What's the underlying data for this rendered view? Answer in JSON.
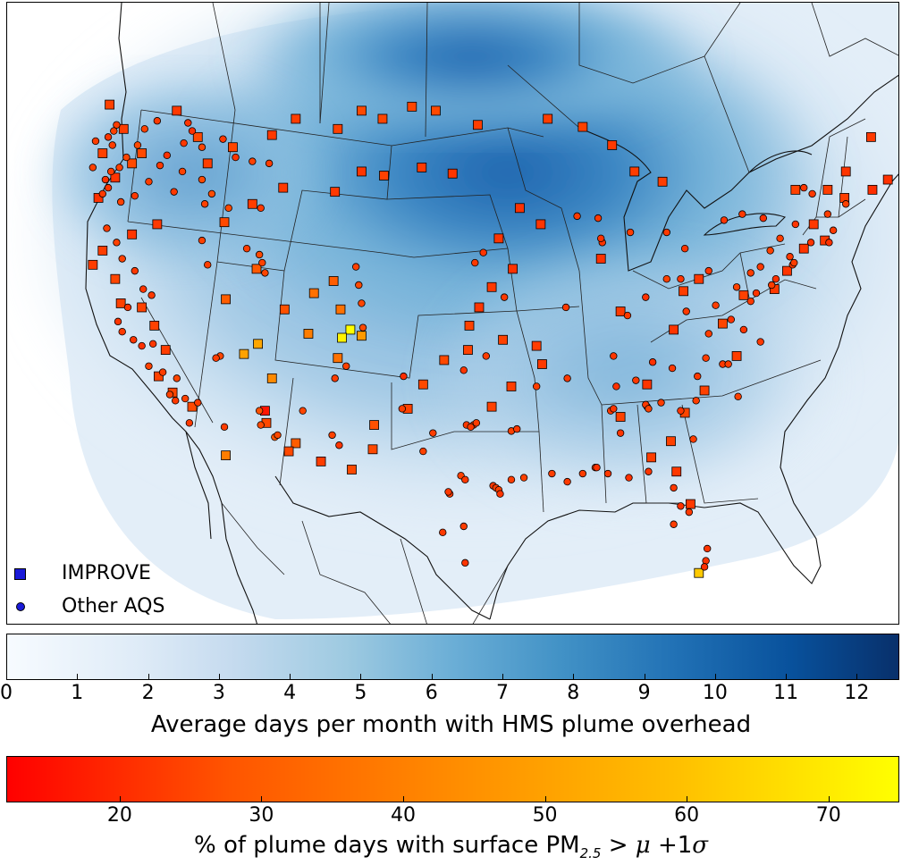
{
  "legend": {
    "improve_label": "IMPROVE",
    "aqs_label": "Other AQS",
    "improve_symbol": "square-marker",
    "aqs_symbol": "circle-marker"
  },
  "colorbar_plume": {
    "label": "Average days per month with HMS plume overhead",
    "ticks": [
      "0",
      "1",
      "2",
      "3",
      "4",
      "5",
      "6",
      "7",
      "8",
      "9",
      "10",
      "11",
      "12"
    ],
    "range": [
      0,
      12.6
    ],
    "colors": [
      "#f7fbff",
      "#deebf7",
      "#c6dbef",
      "#9ecae1",
      "#6baed6",
      "#4292c6",
      "#2171b5",
      "#08519c",
      "#08306b"
    ]
  },
  "colorbar_pm": {
    "label_prefix": "% of plume days with surface PM",
    "label_sub": "2.5",
    "label_suffix": " > ",
    "label_mu": "μ",
    "label_rest": " +1",
    "label_sigma": "σ",
    "ticks": [
      "20",
      "30",
      "40",
      "50",
      "60",
      "70"
    ],
    "range": [
      12,
      75
    ],
    "colors": [
      "#ff0000",
      "#ff5500",
      "#ff8c00",
      "#ffbf00",
      "#ffff00"
    ]
  },
  "improve_sites": [
    [
      -122.8,
      48.6,
      28
    ],
    [
      -121.8,
      47.4,
      27
    ],
    [
      -123.3,
      46.2,
      28
    ],
    [
      -122.4,
      45.0,
      25
    ],
    [
      -123.6,
      44.0,
      24
    ],
    [
      -121.2,
      45.7,
      30
    ],
    [
      -118.0,
      48.3,
      26
    ],
    [
      -116.5,
      47.0,
      30
    ],
    [
      -120.5,
      46.2,
      30
    ],
    [
      -115.8,
      45.7,
      27
    ],
    [
      -114.0,
      46.5,
      29
    ],
    [
      -111.2,
      47.1,
      26
    ],
    [
      -109.5,
      47.9,
      27
    ],
    [
      -106.5,
      47.4,
      28
    ],
    [
      -104.8,
      48.3,
      30
    ],
    [
      -103.3,
      47.9,
      29
    ],
    [
      -101.2,
      48.5,
      29
    ],
    [
      -99.5,
      48.3,
      30
    ],
    [
      -96.5,
      47.6,
      27
    ],
    [
      -91.5,
      47.9,
      27
    ],
    [
      -89.0,
      47.5,
      28
    ],
    [
      -86.9,
      46.6,
      26
    ],
    [
      -85.3,
      45.3,
      27
    ],
    [
      -83.3,
      44.8,
      27
    ],
    [
      -103.2,
      45.1,
      28
    ],
    [
      -100.5,
      45.5,
      26
    ],
    [
      -98.3,
      45.2,
      25
    ],
    [
      -104.8,
      45.3,
      25
    ],
    [
      -106.7,
      44.3,
      26
    ],
    [
      -110.4,
      44.5,
      26
    ],
    [
      -112.6,
      43.7,
      27
    ],
    [
      -114.6,
      42.8,
      30
    ],
    [
      -119.4,
      42.7,
      26
    ],
    [
      -121.2,
      42.2,
      25
    ],
    [
      -123.3,
      41.4,
      27
    ],
    [
      -124.0,
      40.7,
      27
    ],
    [
      -122.4,
      40.0,
      29
    ],
    [
      -122.0,
      38.8,
      28
    ],
    [
      -120.5,
      38.6,
      28
    ],
    [
      -119.6,
      37.7,
      28
    ],
    [
      -118.8,
      36.5,
      27
    ],
    [
      -118.3,
      34.4,
      29
    ],
    [
      -116.9,
      33.7,
      30
    ],
    [
      -119.3,
      35.2,
      28
    ],
    [
      -114.5,
      39.0,
      35
    ],
    [
      -112.3,
      40.5,
      34
    ],
    [
      -110.3,
      38.5,
      32
    ],
    [
      -108.2,
      39.3,
      40
    ],
    [
      -106.8,
      39.9,
      35
    ],
    [
      -106.3,
      38.5,
      40
    ],
    [
      -104.8,
      37.2,
      50
    ],
    [
      -105.6,
      37.5,
      75
    ],
    [
      -106.2,
      37.1,
      72
    ],
    [
      -106.5,
      36.1,
      40
    ],
    [
      -108.6,
      37.3,
      43
    ],
    [
      -112.2,
      36.8,
      53
    ],
    [
      -113.2,
      36.3,
      52
    ],
    [
      -111.2,
      35.1,
      46
    ],
    [
      -111.7,
      33.5,
      17
    ],
    [
      -111.6,
      32.9,
      30
    ],
    [
      -109.5,
      31.9,
      35
    ],
    [
      -110.0,
      31.5,
      30
    ],
    [
      -114.5,
      31.3,
      43
    ],
    [
      -107.7,
      31.0,
      27
    ],
    [
      -105.5,
      30.6,
      30
    ],
    [
      -104.0,
      31.6,
      30
    ],
    [
      -103.9,
      32.8,
      32
    ],
    [
      -101.5,
      33.6,
      28
    ],
    [
      -100.4,
      34.8,
      30
    ],
    [
      -98.9,
      36.0,
      30
    ],
    [
      -97.1,
      37.7,
      28
    ],
    [
      -96.4,
      38.6,
      25
    ],
    [
      -95.5,
      39.6,
      26
    ],
    [
      -94.7,
      37.0,
      28
    ],
    [
      -92.3,
      36.7,
      27
    ],
    [
      -91.9,
      35.8,
      26
    ],
    [
      -94.1,
      34.7,
      27
    ],
    [
      -95.5,
      33.7,
      28
    ],
    [
      -97.2,
      36.5,
      28
    ],
    [
      -94.0,
      40.5,
      24
    ],
    [
      -95.0,
      42.0,
      25
    ],
    [
      -93.5,
      43.5,
      24
    ],
    [
      -92.0,
      42.7,
      25
    ],
    [
      -87.7,
      41.0,
      24
    ],
    [
      -86.3,
      38.4,
      26
    ],
    [
      -82.5,
      37.5,
      25
    ],
    [
      -81.8,
      39.4,
      27
    ],
    [
      -80.7,
      40.0,
      26
    ],
    [
      -79.0,
      37.8,
      29
    ],
    [
      -77.5,
      39.2,
      28
    ],
    [
      -73.8,
      44.4,
      28
    ],
    [
      -71.5,
      44.4,
      27
    ],
    [
      -70.2,
      45.3,
      25
    ],
    [
      -68.3,
      44.4,
      23
    ],
    [
      -67.2,
      44.9,
      24
    ],
    [
      -68.4,
      47.0,
      26
    ],
    [
      -70.3,
      44.0,
      27
    ],
    [
      -72.5,
      42.7,
      26
    ],
    [
      -71.7,
      41.9,
      26
    ],
    [
      -73.2,
      41.5,
      25
    ],
    [
      -74.4,
      40.4,
      25
    ],
    [
      -75.3,
      39.5,
      26
    ],
    [
      -78.0,
      36.2,
      27
    ],
    [
      -80.3,
      34.5,
      28
    ],
    [
      -81.7,
      33.4,
      29
    ],
    [
      -82.7,
      32.0,
      28
    ],
    [
      -84.4,
      34.8,
      25
    ],
    [
      -86.3,
      33.2,
      28
    ],
    [
      -84.1,
      31.2,
      27
    ],
    [
      -82.3,
      30.5,
      26
    ],
    [
      -81.3,
      28.9,
      26
    ],
    [
      -80.7,
      25.5,
      62
    ]
  ],
  "aqs_sites": [
    [
      -122.3,
      47.6,
      27
    ],
    [
      -122.5,
      47.3,
      28
    ],
    [
      -122.9,
      47.0,
      25
    ],
    [
      -122.6,
      46.6,
      27
    ],
    [
      -121.6,
      46.0,
      29
    ],
    [
      -122.1,
      45.5,
      28
    ],
    [
      -122.7,
      45.3,
      27
    ],
    [
      -123.1,
      44.9,
      24
    ],
    [
      -122.9,
      44.5,
      25
    ],
    [
      -123.3,
      44.2,
      26
    ],
    [
      -122.0,
      43.8,
      28
    ],
    [
      -121.0,
      44.1,
      26
    ],
    [
      -120.0,
      44.8,
      27
    ],
    [
      -119.2,
      45.6,
      26
    ],
    [
      -118.7,
      46.1,
      24
    ],
    [
      -117.5,
      46.7,
      26
    ],
    [
      -117.2,
      47.7,
      25
    ],
    [
      -116.9,
      47.3,
      24
    ],
    [
      -116.2,
      46.5,
      29
    ],
    [
      -114.7,
      46.9,
      26
    ],
    [
      -113.8,
      46.0,
      25
    ],
    [
      -112.6,
      45.8,
      28
    ],
    [
      -111.4,
      45.7,
      27
    ],
    [
      -117.6,
      45.3,
      28
    ],
    [
      -116.2,
      44.9,
      30
    ],
    [
      -115.5,
      44.2,
      31
    ],
    [
      -114.3,
      43.5,
      30
    ],
    [
      -116.0,
      43.7,
      28
    ],
    [
      -112.0,
      43.5,
      26
    ],
    [
      -118.2,
      44.3,
      26
    ],
    [
      -120.8,
      46.6,
      30
    ],
    [
      -120.3,
      47.4,
      28
    ],
    [
      -119.4,
      47.8,
      26
    ],
    [
      -123.8,
      46.8,
      27
    ],
    [
      -124.0,
      45.5,
      28
    ],
    [
      -123.0,
      42.5,
      27
    ],
    [
      -122.3,
      41.8,
      28
    ],
    [
      -121.9,
      41.0,
      28
    ],
    [
      -121.0,
      40.4,
      26
    ],
    [
      -120.4,
      39.5,
      25
    ],
    [
      -119.8,
      39.2,
      26
    ],
    [
      -121.5,
      38.6,
      25
    ],
    [
      -122.2,
      37.9,
      25
    ],
    [
      -121.9,
      37.4,
      26
    ],
    [
      -121.1,
      37.0,
      25
    ],
    [
      -120.5,
      36.7,
      24
    ],
    [
      -120.0,
      35.7,
      28
    ],
    [
      -118.0,
      35.1,
      29
    ],
    [
      -117.4,
      34.1,
      28
    ],
    [
      -118.1,
      34.0,
      26
    ],
    [
      -116.5,
      33.9,
      27
    ],
    [
      -117.1,
      32.9,
      26
    ],
    [
      -118.5,
      34.3,
      28
    ],
    [
      -113.0,
      41.5,
      27
    ],
    [
      -111.9,
      40.8,
      28
    ],
    [
      -111.7,
      40.3,
      29
    ],
    [
      -112.1,
      41.2,
      30
    ],
    [
      -105.0,
      39.7,
      30
    ],
    [
      -105.2,
      40.6,
      28
    ],
    [
      -104.8,
      38.8,
      29
    ],
    [
      -106.7,
      35.1,
      27
    ],
    [
      -105.9,
      35.7,
      28
    ],
    [
      -106.9,
      32.3,
      28
    ],
    [
      -104.7,
      37.6,
      30
    ],
    [
      -112.1,
      33.5,
      32
    ],
    [
      -111.0,
      32.2,
      33
    ],
    [
      -110.8,
      32.3,
      30
    ],
    [
      -109.0,
      33.5,
      29
    ],
    [
      -101.8,
      35.2,
      23
    ],
    [
      -101.9,
      33.6,
      27
    ],
    [
      -97.3,
      32.8,
      26
    ],
    [
      -96.8,
      32.8,
      25
    ],
    [
      -96.6,
      32.9,
      27
    ],
    [
      -97.0,
      32.7,
      26
    ],
    [
      -94.1,
      32.5,
      28
    ],
    [
      -93.7,
      32.6,
      26
    ],
    [
      -97.7,
      30.3,
      28
    ],
    [
      -97.4,
      30.1,
      26
    ],
    [
      -98.5,
      29.4,
      27
    ],
    [
      -98.6,
      29.5,
      26
    ],
    [
      -95.4,
      29.8,
      26
    ],
    [
      -95.2,
      29.7,
      27
    ],
    [
      -95.0,
      29.6,
      28
    ],
    [
      -94.9,
      29.4,
      25
    ],
    [
      -94.1,
      30.1,
      27
    ],
    [
      -93.2,
      30.2,
      28
    ],
    [
      -91.2,
      30.4,
      27
    ],
    [
      -90.1,
      30.0,
      26
    ],
    [
      -89.0,
      30.4,
      27
    ],
    [
      -88.1,
      30.7,
      28
    ],
    [
      -87.2,
      30.4,
      26
    ],
    [
      -85.7,
      30.2,
      24
    ],
    [
      -84.3,
      30.5,
      25
    ],
    [
      -82.5,
      29.7,
      26
    ],
    [
      -82.0,
      28.8,
      24
    ],
    [
      -82.5,
      27.9,
      27
    ],
    [
      -81.4,
      28.5,
      26
    ],
    [
      -80.2,
      26.1,
      25
    ],
    [
      -80.3,
      25.8,
      24
    ],
    [
      -81.1,
      32.1,
      27
    ],
    [
      -84.4,
      33.7,
      25
    ],
    [
      -84.5,
      33.8,
      26
    ],
    [
      -84.3,
      33.6,
      28
    ],
    [
      -83.4,
      33.9,
      27
    ],
    [
      -82.0,
      33.5,
      25
    ],
    [
      -80.9,
      34.0,
      27
    ],
    [
      -80.8,
      35.2,
      26
    ],
    [
      -80.2,
      36.1,
      27
    ],
    [
      -79.0,
      35.8,
      26
    ],
    [
      -78.6,
      35.8,
      27
    ],
    [
      -77.9,
      34.2,
      28
    ],
    [
      -76.3,
      36.9,
      26
    ],
    [
      -77.5,
      37.5,
      25
    ],
    [
      -78.4,
      38.0,
      24
    ],
    [
      -80.0,
      37.3,
      27
    ],
    [
      -81.6,
      38.4,
      26
    ],
    [
      -82.0,
      40.0,
      25
    ],
    [
      -83.0,
      40.0,
      28
    ],
    [
      -84.5,
      39.1,
      24
    ],
    [
      -85.8,
      38.2,
      26
    ],
    [
      -86.8,
      36.2,
      25
    ],
    [
      -86.6,
      34.7,
      24
    ],
    [
      -87.0,
      33.5,
      26
    ],
    [
      -86.8,
      33.6,
      25
    ],
    [
      -90.1,
      35.1,
      26
    ],
    [
      -92.3,
      34.7,
      27
    ],
    [
      -90.2,
      38.6,
      26
    ],
    [
      -87.6,
      41.8,
      25
    ],
    [
      -87.7,
      42.0,
      24
    ],
    [
      -89.4,
      43.1,
      26
    ],
    [
      -87.9,
      43.0,
      26
    ],
    [
      -85.6,
      42.3,
      27
    ],
    [
      -83.0,
      42.3,
      26
    ],
    [
      -81.7,
      41.5,
      25
    ],
    [
      -80.0,
      40.4,
      25
    ],
    [
      -77.0,
      40.3,
      27
    ],
    [
      -75.2,
      40.0,
      24
    ],
    [
      -74.0,
      40.7,
      26
    ],
    [
      -73.9,
      40.8,
      27
    ],
    [
      -72.7,
      41.8,
      25
    ],
    [
      -71.1,
      42.4,
      26
    ],
    [
      -71.4,
      41.8,
      24
    ],
    [
      -73.8,
      42.7,
      25
    ],
    [
      -76.1,
      43.0,
      24
    ],
    [
      -77.6,
      43.2,
      26
    ],
    [
      -78.9,
      42.9,
      25
    ],
    [
      -76.6,
      39.3,
      25
    ],
    [
      -77.0,
      38.9,
      26
    ],
    [
      -75.5,
      39.7,
      27
    ],
    [
      -70.2,
      43.7,
      28
    ],
    [
      -71.5,
      43.2,
      27
    ],
    [
      -72.6,
      44.2,
      26
    ],
    [
      -73.2,
      44.5,
      25
    ],
    [
      -74.2,
      41.1,
      26
    ],
    [
      -75.6,
      41.4,
      28
    ],
    [
      -74.9,
      42.0,
      27
    ],
    [
      -76.3,
      40.6,
      26
    ],
    [
      -78.0,
      39.6,
      28
    ],
    [
      -79.5,
      38.7,
      27
    ],
    [
      -80.1,
      26.7,
      25
    ],
    [
      -82.6,
      35.6,
      26
    ],
    [
      -84.0,
      35.9,
      24
    ],
    [
      -85.2,
      35.0,
      26
    ],
    [
      -86.3,
      32.4,
      25
    ],
    [
      -88.0,
      30.7,
      24
    ],
    [
      -96.1,
      41.3,
      25
    ],
    [
      -96.7,
      40.8,
      26
    ],
    [
      -97.5,
      35.5,
      25
    ],
    [
      -95.9,
      36.2,
      27
    ],
    [
      -94.6,
      39.1,
      26
    ],
    [
      -99.7,
      32.4,
      27
    ],
    [
      -100.4,
      31.5,
      28
    ],
    [
      -99.0,
      27.5,
      26
    ],
    [
      -97.5,
      27.8,
      27
    ],
    [
      -97.4,
      26.0,
      25
    ],
    [
      -106.4,
      31.8,
      25
    ],
    [
      -112.0,
      32.8,
      30
    ],
    [
      -114.6,
      32.7,
      27
    ],
    [
      -116.2,
      41.9,
      28
    ],
    [
      -115.8,
      40.7,
      27
    ],
    [
      -114.9,
      36.2,
      29
    ],
    [
      -115.2,
      36.1,
      27
    ],
    [
      -119.7,
      36.8,
      26
    ],
    [
      -119.0,
      35.4,
      27
    ]
  ]
}
